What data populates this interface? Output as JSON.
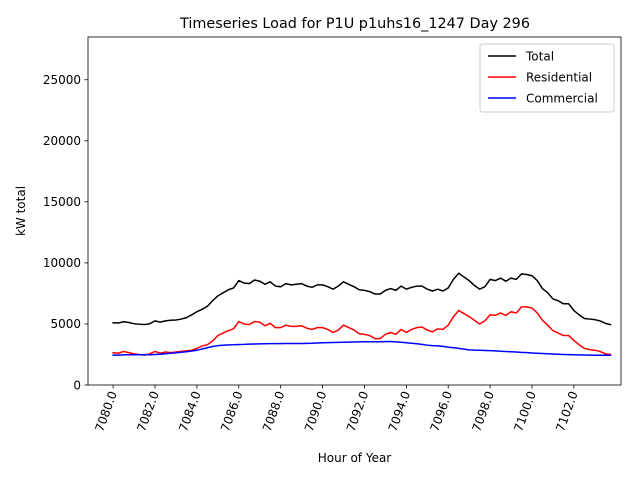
{
  "chart_data": {
    "type": "line",
    "title": "Timeseries Load for P1U p1uhs16_1247  Day 296",
    "xlabel": "Hour of Year",
    "ylabel": "kW total",
    "xlim": [
      7078.8,
      7104.25
    ],
    "ylim": [
      0,
      28500
    ],
    "x_ticks": [
      7080,
      7082,
      7084,
      7086,
      7088,
      7090,
      7092,
      7094,
      7096,
      7098,
      7100,
      7102
    ],
    "x_tick_labels": [
      "7080.0",
      "7082.0",
      "7084.0",
      "7086.0",
      "7088.0",
      "7090.0",
      "7092.0",
      "7094.0",
      "7096.0",
      "7098.0",
      "7100.0",
      "7102.0"
    ],
    "y_ticks": [
      0,
      5000,
      10000,
      15000,
      20000,
      25000
    ],
    "y_tick_labels": [
      "0",
      "5000",
      "10000",
      "15000",
      "20000",
      "25000"
    ],
    "legend_position": "top-right",
    "x": [
      7080.0,
      7080.25,
      7080.5,
      7080.75,
      7081.0,
      7081.25,
      7081.5,
      7081.75,
      7082.0,
      7082.25,
      7082.5,
      7082.75,
      7083.0,
      7083.25,
      7083.5,
      7083.75,
      7084.0,
      7084.25,
      7084.5,
      7084.75,
      7085.0,
      7085.25,
      7085.5,
      7085.75,
      7086.0,
      7086.25,
      7086.5,
      7086.75,
      7087.0,
      7087.25,
      7087.5,
      7087.75,
      7088.0,
      7088.25,
      7088.5,
      7088.75,
      7089.0,
      7089.25,
      7089.5,
      7089.75,
      7090.0,
      7090.25,
      7090.5,
      7090.75,
      7091.0,
      7091.25,
      7091.5,
      7091.75,
      7092.0,
      7092.25,
      7092.5,
      7092.75,
      7093.0,
      7093.25,
      7093.5,
      7093.75,
      7094.0,
      7094.25,
      7094.5,
      7094.75,
      7095.0,
      7095.25,
      7095.5,
      7095.75,
      7096.0,
      7096.25,
      7096.5,
      7096.75,
      7097.0,
      7097.25,
      7097.5,
      7097.75,
      7098.0,
      7098.25,
      7098.5,
      7098.75,
      7099.0,
      7099.25,
      7099.5,
      7099.75,
      7100.0,
      7100.25,
      7100.5,
      7100.75,
      7101.0,
      7101.25,
      7101.5,
      7101.75,
      7102.0,
      7102.25,
      7102.5,
      7102.75,
      7103.0,
      7103.25,
      7103.5,
      7103.75
    ],
    "series": [
      {
        "name": "Total",
        "color": "#000000",
        "values": [
          5100,
          5080,
          5180,
          5120,
          5020,
          4980,
          4950,
          5020,
          5250,
          5150,
          5250,
          5300,
          5320,
          5400,
          5520,
          5750,
          6000,
          6200,
          6450,
          6900,
          7300,
          7550,
          7800,
          7950,
          8550,
          8350,
          8300,
          8600,
          8500,
          8250,
          8450,
          8100,
          8050,
          8300,
          8200,
          8250,
          8300,
          8100,
          8000,
          8200,
          8200,
          8050,
          7850,
          8100,
          8450,
          8250,
          8050,
          7800,
          7750,
          7650,
          7450,
          7450,
          7750,
          7900,
          7750,
          8100,
          7850,
          8000,
          8100,
          8100,
          7850,
          7700,
          7850,
          7700,
          7950,
          8650,
          9150,
          8850,
          8550,
          8150,
          7850,
          8050,
          8650,
          8550,
          8750,
          8500,
          8750,
          8650,
          9100,
          9050,
          8950,
          8550,
          7900,
          7550,
          7050,
          6900,
          6650,
          6650,
          6100,
          5750,
          5450,
          5400,
          5350,
          5250,
          5050,
          4950
        ]
      },
      {
        "name": "Residential",
        "color": "#ff0000",
        "values": [
          2650,
          2600,
          2750,
          2650,
          2550,
          2500,
          2450,
          2550,
          2750,
          2600,
          2700,
          2650,
          2700,
          2750,
          2800,
          2850,
          3000,
          3200,
          3300,
          3600,
          4050,
          4250,
          4450,
          4600,
          5200,
          5000,
          4950,
          5200,
          5150,
          4850,
          5050,
          4700,
          4700,
          4900,
          4800,
          4800,
          4850,
          4650,
          4550,
          4700,
          4700,
          4550,
          4300,
          4500,
          4900,
          4700,
          4500,
          4200,
          4150,
          4050,
          3800,
          3800,
          4150,
          4300,
          4150,
          4550,
          4300,
          4550,
          4700,
          4750,
          4500,
          4350,
          4600,
          4550,
          4900,
          5600,
          6100,
          5850,
          5600,
          5300,
          5000,
          5250,
          5750,
          5700,
          5900,
          5700,
          6000,
          5900,
          6400,
          6400,
          6300,
          5900,
          5300,
          4900,
          4450,
          4250,
          4050,
          4050,
          3650,
          3300,
          3000,
          2900,
          2850,
          2750,
          2550,
          2500
        ]
      },
      {
        "name": "Commercial",
        "color": "#0000ff",
        "values": [
          2450,
          2450,
          2470,
          2480,
          2480,
          2480,
          2480,
          2480,
          2500,
          2520,
          2560,
          2600,
          2640,
          2680,
          2720,
          2780,
          2850,
          2950,
          3050,
          3150,
          3220,
          3260,
          3290,
          3300,
          3320,
          3330,
          3350,
          3360,
          3370,
          3380,
          3390,
          3390,
          3390,
          3400,
          3400,
          3400,
          3400,
          3410,
          3420,
          3440,
          3460,
          3470,
          3480,
          3490,
          3500,
          3510,
          3520,
          3530,
          3540,
          3540,
          3540,
          3540,
          3550,
          3560,
          3530,
          3500,
          3460,
          3420,
          3380,
          3330,
          3260,
          3220,
          3200,
          3160,
          3100,
          3050,
          3000,
          2940,
          2880,
          2860,
          2850,
          2830,
          2820,
          2790,
          2760,
          2740,
          2720,
          2700,
          2670,
          2650,
          2620,
          2600,
          2580,
          2560,
          2540,
          2520,
          2500,
          2490,
          2480,
          2470,
          2460,
          2450,
          2440,
          2440,
          2440,
          2440
        ]
      }
    ]
  }
}
